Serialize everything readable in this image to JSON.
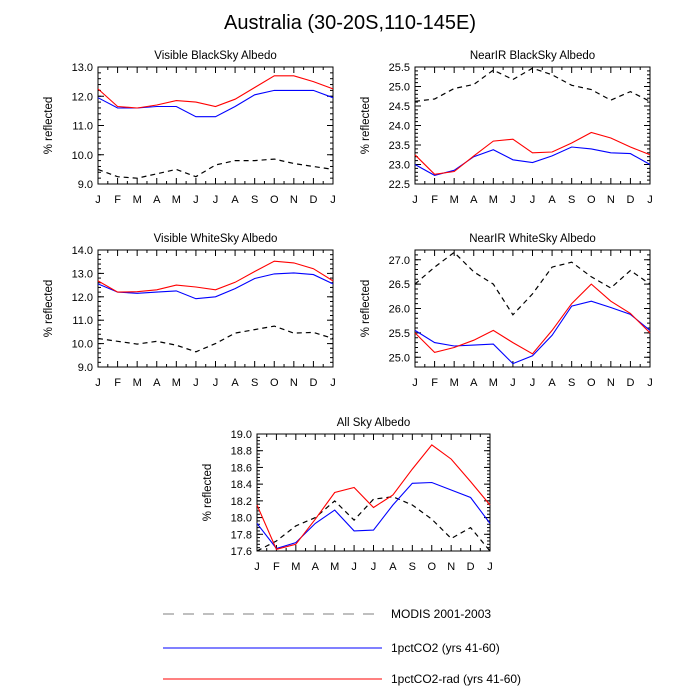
{
  "figure": {
    "title": "Australia (30-20S,110-145E)"
  },
  "legend": {
    "placement": "bottom-center",
    "items": [
      {
        "label": "MODIS 2001-2003",
        "color": "#000000",
        "style": "dashed"
      },
      {
        "label": "1pctCO2 (yrs 41-60)",
        "color": "#0000ff",
        "style": "solid"
      },
      {
        "label": "1pctCO2-rad (yrs 41-60)",
        "color": "#ff0000",
        "style": "solid"
      }
    ]
  },
  "chart_data": [
    {
      "type": "line",
      "title": "Visible BlackSky Albedo",
      "ylabel": "% reflected",
      "xlabel": "",
      "categories": [
        "J",
        "F",
        "M",
        "A",
        "M",
        "J",
        "J",
        "A",
        "S",
        "O",
        "N",
        "D",
        "J"
      ],
      "ylim": [
        9.0,
        13.0
      ],
      "yticks": [
        9.0,
        10.0,
        11.0,
        12.0,
        13.0
      ],
      "ytick_labels": [
        "9.0",
        "10.0",
        "11.0",
        "12.0",
        "13.0"
      ],
      "series": [
        {
          "name": "MODIS 2001-2003",
          "values": [
            9.5,
            9.25,
            9.2,
            9.35,
            9.5,
            9.25,
            9.65,
            9.8,
            9.8,
            9.85,
            9.7,
            9.6,
            9.5
          ]
        },
        {
          "name": "1pctCO2 (yrs 41-60)",
          "values": [
            11.95,
            11.6,
            11.6,
            11.65,
            11.65,
            11.3,
            11.3,
            11.65,
            12.05,
            12.2,
            12.2,
            12.2,
            11.95
          ]
        },
        {
          "name": "1pctCO2-rad (yrs 41-60)",
          "values": [
            12.25,
            11.65,
            11.6,
            11.7,
            11.85,
            11.8,
            11.65,
            11.9,
            12.3,
            12.7,
            12.7,
            12.5,
            12.25
          ]
        }
      ]
    },
    {
      "type": "line",
      "title": "NearIR BlackSky Albedo",
      "ylabel": "% reflected",
      "xlabel": "",
      "categories": [
        "J",
        "F",
        "M",
        "A",
        "M",
        "J",
        "J",
        "A",
        "S",
        "O",
        "N",
        "D",
        "J"
      ],
      "ylim": [
        22.5,
        25.5
      ],
      "yticks": [
        22.5,
        23.0,
        23.5,
        24.0,
        24.5,
        25.0,
        25.5
      ],
      "ytick_labels": [
        "22.5",
        "23.0",
        "23.5",
        "24.0",
        "24.5",
        "25.0",
        "25.5"
      ],
      "series": [
        {
          "name": "MODIS 2001-2003",
          "values": [
            24.62,
            24.68,
            24.95,
            25.05,
            25.42,
            25.18,
            25.47,
            25.3,
            25.03,
            24.92,
            24.65,
            24.87,
            24.62
          ]
        },
        {
          "name": "1pctCO2 (yrs 41-60)",
          "values": [
            23.0,
            22.72,
            22.85,
            23.2,
            23.38,
            23.12,
            23.05,
            23.22,
            23.45,
            23.4,
            23.3,
            23.28,
            23.0
          ]
        },
        {
          "name": "1pctCO2-rad (yrs 41-60)",
          "values": [
            23.25,
            22.75,
            22.82,
            23.22,
            23.6,
            23.65,
            23.3,
            23.32,
            23.55,
            23.82,
            23.68,
            23.45,
            23.25
          ]
        }
      ]
    },
    {
      "type": "line",
      "title": "Visible WhiteSky Albedo",
      "ylabel": "% reflected",
      "xlabel": "",
      "categories": [
        "J",
        "F",
        "M",
        "A",
        "M",
        "J",
        "J",
        "A",
        "S",
        "O",
        "N",
        "D",
        "J"
      ],
      "ylim": [
        9.0,
        14.0
      ],
      "yticks": [
        9.0,
        10.0,
        11.0,
        12.0,
        13.0,
        14.0
      ],
      "ytick_labels": [
        "9.0",
        "10.0",
        "11.0",
        "12.0",
        "13.0",
        "14.0"
      ],
      "series": [
        {
          "name": "MODIS 2001-2003",
          "values": [
            10.22,
            10.1,
            9.98,
            10.1,
            9.93,
            9.65,
            10.0,
            10.45,
            10.6,
            10.75,
            10.45,
            10.48,
            10.22
          ]
        },
        {
          "name": "1pctCO2 (yrs 41-60)",
          "values": [
            12.55,
            12.2,
            12.15,
            12.2,
            12.25,
            11.92,
            12.0,
            12.35,
            12.78,
            12.98,
            13.02,
            12.95,
            12.55
          ]
        },
        {
          "name": "1pctCO2-rad (yrs 41-60)",
          "values": [
            12.68,
            12.2,
            12.22,
            12.3,
            12.5,
            12.42,
            12.3,
            12.62,
            13.08,
            13.52,
            13.45,
            13.2,
            12.68
          ]
        }
      ]
    },
    {
      "type": "line",
      "title": "NearIR WhiteSky Albedo",
      "ylabel": "% reflected",
      "xlabel": "",
      "categories": [
        "J",
        "F",
        "M",
        "A",
        "M",
        "J",
        "J",
        "A",
        "S",
        "O",
        "N",
        "D",
        "J"
      ],
      "ylim": [
        24.8,
        27.2
      ],
      "yticks": [
        25.0,
        25.5,
        26.0,
        26.5,
        27.0
      ],
      "ytick_labels": [
        "25.0",
        "25.5",
        "26.0",
        "26.5",
        "27.0"
      ],
      "series": [
        {
          "name": "MODIS 2001-2003",
          "values": [
            26.5,
            26.85,
            27.15,
            26.75,
            26.5,
            25.87,
            26.3,
            26.85,
            26.95,
            26.65,
            26.42,
            26.78,
            26.5
          ]
        },
        {
          "name": "1pctCO2 (yrs 41-60)",
          "values": [
            25.55,
            25.3,
            25.23,
            25.25,
            25.27,
            24.87,
            25.03,
            25.45,
            26.05,
            26.15,
            26.02,
            25.88,
            25.55
          ]
        },
        {
          "name": "1pctCO2-rad (yrs 41-60)",
          "values": [
            25.5,
            25.1,
            25.2,
            25.35,
            25.55,
            25.3,
            25.07,
            25.55,
            26.1,
            26.5,
            26.15,
            25.9,
            25.5
          ]
        }
      ]
    },
    {
      "type": "line",
      "title": "All Sky Albedo",
      "ylabel": "% reflected",
      "xlabel": "",
      "categories": [
        "J",
        "F",
        "M",
        "A",
        "M",
        "J",
        "J",
        "A",
        "S",
        "O",
        "N",
        "D",
        "J"
      ],
      "ylim": [
        17.6,
        19.0
      ],
      "yticks": [
        17.6,
        17.8,
        18.0,
        18.2,
        18.4,
        18.6,
        18.8,
        19.0
      ],
      "ytick_labels": [
        "17.6",
        "17.8",
        "18.0",
        "18.2",
        "18.4",
        "18.6",
        "18.8",
        "19.0"
      ],
      "series": [
        {
          "name": "MODIS 2001-2003",
          "values": [
            17.6,
            17.72,
            17.9,
            18.0,
            18.2,
            17.97,
            18.22,
            18.25,
            18.15,
            17.98,
            17.75,
            17.88,
            17.6
          ]
        },
        {
          "name": "1pctCO2 (yrs 41-60)",
          "values": [
            17.93,
            17.63,
            17.7,
            17.93,
            18.09,
            17.84,
            17.85,
            18.15,
            18.41,
            18.42,
            18.33,
            18.24,
            17.93
          ]
        },
        {
          "name": "1pctCO2-rad (yrs 41-60)",
          "values": [
            18.15,
            17.62,
            17.68,
            17.98,
            18.3,
            18.36,
            18.12,
            18.27,
            18.58,
            18.87,
            18.7,
            18.43,
            18.15
          ]
        }
      ]
    }
  ]
}
